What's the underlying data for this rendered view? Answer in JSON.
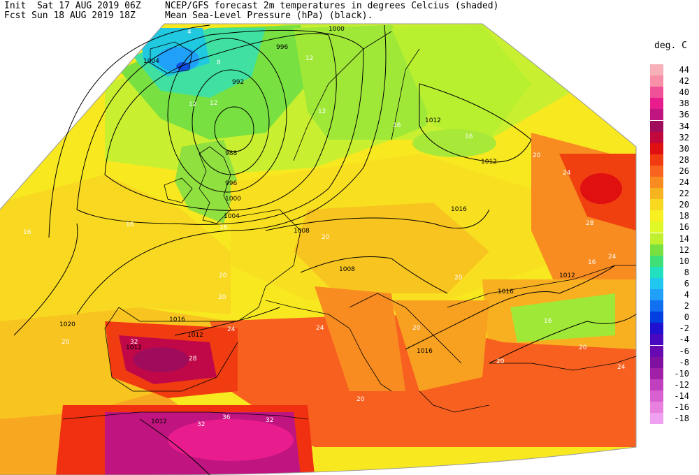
{
  "header": {
    "line1_left": "Init  Sat 17 AUG 2019 06Z",
    "line2_left": "Fcst Sun 18 AUG 2019 18Z",
    "line1_right": "NCEP/GFS forecast 2m temperatures in degrees Celcius (shaded)",
    "line2_right": "Mean Sea-Level Pressure (hPa) (black)."
  },
  "legend": {
    "unit": "deg. C",
    "entries": [
      {
        "label": "44",
        "color": "#f8b0b8"
      },
      {
        "label": "42",
        "color": "#f890a8"
      },
      {
        "label": "40",
        "color": "#f05098"
      },
      {
        "label": "38",
        "color": "#e81c8c"
      },
      {
        "label": "36",
        "color": "#c01480"
      },
      {
        "label": "34",
        "color": "#a00c5c"
      },
      {
        "label": "32",
        "color": "#c0083c"
      },
      {
        "label": "30",
        "color": "#e01010"
      },
      {
        "label": "28",
        "color": "#f03c10"
      },
      {
        "label": "26",
        "color": "#f86420"
      },
      {
        "label": "24",
        "color": "#f88c20"
      },
      {
        "label": "22",
        "color": "#f8b420"
      },
      {
        "label": "20",
        "color": "#f8d820"
      },
      {
        "label": "18",
        "color": "#f8f020"
      },
      {
        "label": "16",
        "color": "#e0f828"
      },
      {
        "label": "14",
        "color": "#c0f030"
      },
      {
        "label": "12",
        "color": "#78e040"
      },
      {
        "label": "10",
        "color": "#40e078"
      },
      {
        "label": "8",
        "color": "#20e0c0"
      },
      {
        "label": "6",
        "color": "#20c8f0"
      },
      {
        "label": "4",
        "color": "#20a0f8"
      },
      {
        "label": "2",
        "color": "#1070f0"
      },
      {
        "label": "0",
        "color": "#0040e0"
      },
      {
        "label": "-2",
        "color": "#2010d0"
      },
      {
        "label": "-4",
        "color": "#4808c0"
      },
      {
        "label": "-6",
        "color": "#6808b0"
      },
      {
        "label": "-8",
        "color": "#8010a0"
      },
      {
        "label": "-10",
        "color": "#a020a8"
      },
      {
        "label": "-12",
        "color": "#c040c0"
      },
      {
        "label": "-14",
        "color": "#d860d0"
      },
      {
        "label": "-16",
        "color": "#e880e0"
      },
      {
        "label": "-18",
        "color": "#f0a0f0"
      }
    ]
  },
  "isobar_labels": [
    {
      "text": "1000"
    },
    {
      "text": "996"
    },
    {
      "text": "992"
    },
    {
      "text": "988"
    },
    {
      "text": "996"
    },
    {
      "text": "1000"
    },
    {
      "text": "1004"
    },
    {
      "text": "1004"
    },
    {
      "text": "1008"
    },
    {
      "text": "1008"
    },
    {
      "text": "1012"
    },
    {
      "text": "1012"
    },
    {
      "text": "1016"
    },
    {
      "text": "1012"
    },
    {
      "text": "1016"
    },
    {
      "text": "1012"
    },
    {
      "text": "1016"
    },
    {
      "text": "1020"
    },
    {
      "text": "1016"
    },
    {
      "text": "1012"
    },
    {
      "text": "1012"
    }
  ],
  "temp_labels": [
    {
      "text": "4"
    },
    {
      "text": "8"
    },
    {
      "text": "12"
    },
    {
      "text": "12"
    },
    {
      "text": "12"
    },
    {
      "text": "12"
    },
    {
      "text": "16"
    },
    {
      "text": "16"
    },
    {
      "text": "16"
    },
    {
      "text": "16"
    },
    {
      "text": "16"
    },
    {
      "text": "20"
    },
    {
      "text": "20"
    },
    {
      "text": "20"
    },
    {
      "text": "24"
    },
    {
      "text": "28"
    },
    {
      "text": "24"
    },
    {
      "text": "20"
    },
    {
      "text": "20"
    },
    {
      "text": "24"
    },
    {
      "text": "28"
    },
    {
      "text": "32"
    },
    {
      "text": "32"
    },
    {
      "text": "36"
    },
    {
      "text": "32"
    },
    {
      "text": "20"
    },
    {
      "text": "16"
    },
    {
      "text": "20"
    },
    {
      "text": "24"
    },
    {
      "text": "20"
    },
    {
      "text": "16"
    },
    {
      "text": "24"
    },
    {
      "text": "20"
    },
    {
      "text": "20"
    }
  ]
}
